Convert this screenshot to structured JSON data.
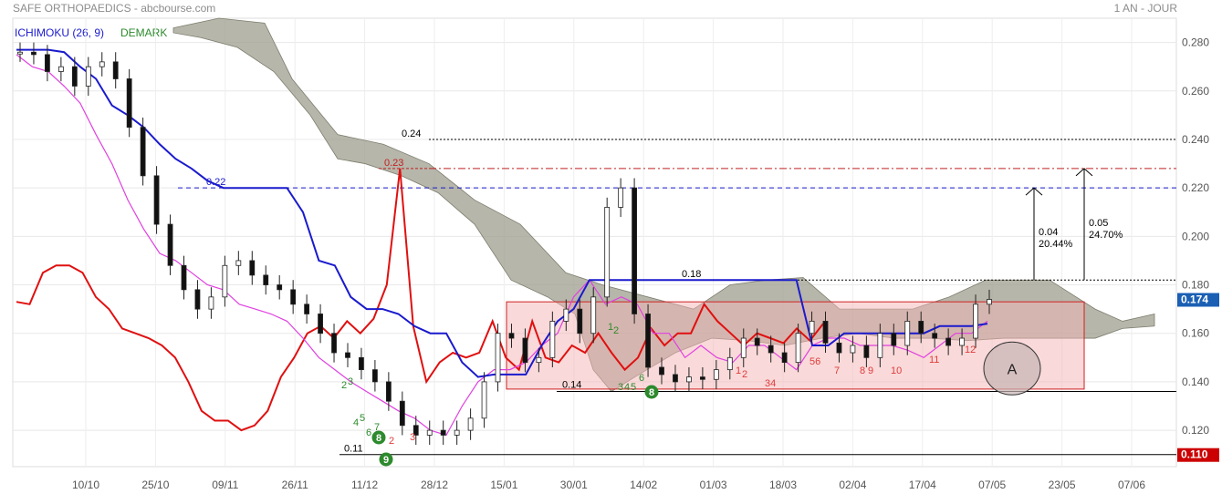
{
  "header": {
    "title": "SAFE ORTHOPAEDICS - abcbourse.com",
    "period": "1 AN - JOUR"
  },
  "legend": {
    "ichimoku": "ICHIMOKU (26, 9)",
    "demark": "DEMARK"
  },
  "colors": {
    "kijun": "#1a1acd",
    "tenkan": "#e040e0",
    "chikou": "#e01010",
    "cloud": "#9e9e8e",
    "zone": "#f4b4b4",
    "demark_green": "#2d8a2d",
    "demark_red": "#e03c3c",
    "price_badge": "#cc0000"
  },
  "chart_data": {
    "type": "candlestick",
    "ylim": [
      0.105,
      0.29
    ],
    "y_ticks": [
      "0.280",
      "0.260",
      "0.240",
      "0.220",
      "0.200",
      "0.180",
      "0.160",
      "0.140",
      "0.120"
    ],
    "x_ticks": [
      "10/10",
      "25/10",
      "09/11",
      "26/11",
      "11/12",
      "28/12",
      "15/01",
      "30/01",
      "14/02",
      "01/03",
      "18/03",
      "02/04",
      "17/04",
      "07/05",
      "23/05",
      "07/06"
    ],
    "last_price": "0.174",
    "low_price": "0.110",
    "levels": [
      {
        "label": "0.24",
        "value": 0.24
      },
      {
        "label": "0.23",
        "value": 0.228
      },
      {
        "label": "0.22",
        "value": 0.22
      },
      {
        "label": "0.18",
        "value": 0.182
      },
      {
        "label": "0.14",
        "value": 0.136
      },
      {
        "label": "0.11",
        "value": 0.11
      }
    ],
    "targets": [
      {
        "change": "0.04",
        "pct": "20.44%"
      },
      {
        "change": "0.05",
        "pct": "24.70%"
      }
    ],
    "zone_label": "A",
    "demark_badges": [
      "8",
      "9",
      "8"
    ],
    "demark_counts": [
      {
        "text": "2",
        "color": "green"
      },
      {
        "text": "3",
        "color": "green"
      },
      {
        "text": "4",
        "color": "green"
      },
      {
        "text": "5",
        "color": "green"
      },
      {
        "text": "6",
        "color": "green"
      },
      {
        "text": "7",
        "color": "green"
      },
      {
        "text": "2",
        "color": "red"
      },
      {
        "text": "3",
        "color": "red"
      },
      {
        "text": "1",
        "color": "green"
      },
      {
        "text": "2",
        "color": "green"
      },
      {
        "text": "3",
        "color": "green"
      },
      {
        "text": "4",
        "color": "green"
      },
      {
        "text": "5",
        "color": "green"
      },
      {
        "text": "6",
        "color": "green"
      },
      {
        "text": "7",
        "color": "green"
      },
      {
        "text": "1",
        "color": "red"
      },
      {
        "text": "2",
        "color": "red"
      },
      {
        "text": "34",
        "color": "red"
      },
      {
        "text": "56",
        "color": "red"
      },
      {
        "text": "7",
        "color": "red"
      },
      {
        "text": "8",
        "color": "red"
      },
      {
        "text": "9",
        "color": "red"
      },
      {
        "text": "10",
        "color": "red"
      },
      {
        "text": "11",
        "color": "red"
      },
      {
        "text": "12",
        "color": "red"
      }
    ],
    "kijun": [
      0.277,
      0.277,
      0.277,
      0.276,
      0.27,
      0.265,
      0.254,
      0.25,
      0.245,
      0.238,
      0.232,
      0.228,
      0.223,
      0.22,
      0.22,
      0.22,
      0.22,
      0.22,
      0.21,
      0.19,
      0.188,
      0.175,
      0.17,
      0.17,
      0.168,
      0.163,
      0.16,
      0.16,
      0.148,
      0.142,
      0.143,
      0.143,
      0.143,
      0.155,
      0.165,
      0.17,
      0.182,
      0.182,
      0.182,
      0.182,
      0.182,
      0.182,
      0.182,
      0.182,
      0.182,
      0.182,
      0.182,
      0.182,
      0.182,
      0.182,
      0.155,
      0.155,
      0.16,
      0.16,
      0.16,
      0.16,
      0.16,
      0.16,
      0.163,
      0.163,
      0.163,
      0.164
    ],
    "tenkan": [
      0.275,
      0.27,
      0.268,
      0.262,
      0.255,
      0.242,
      0.23,
      0.215,
      0.203,
      0.193,
      0.19,
      0.185,
      0.18,
      0.178,
      0.172,
      0.17,
      0.168,
      0.165,
      0.158,
      0.15,
      0.145,
      0.14,
      0.136,
      0.132,
      0.128,
      0.125,
      0.12,
      0.118,
      0.13,
      0.14,
      0.145,
      0.145,
      0.148,
      0.155,
      0.16,
      0.175,
      0.182,
      0.172,
      0.175,
      0.172,
      0.16,
      0.16,
      0.15,
      0.155,
      0.15,
      0.148,
      0.155,
      0.155,
      0.15,
      0.145,
      0.155,
      0.158,
      0.158,
      0.155,
      0.155,
      0.155,
      0.153,
      0.15,
      0.155,
      0.16,
      0.16,
      0.165
    ],
    "chikou": [
      0.173,
      0.172,
      0.185,
      0.188,
      0.188,
      0.185,
      0.175,
      0.17,
      0.162,
      0.16,
      0.158,
      0.155,
      0.15,
      0.14,
      0.128,
      0.124,
      0.124,
      0.12,
      0.122,
      0.128,
      0.142,
      0.15,
      0.16,
      0.163,
      0.158,
      0.165,
      0.16,
      0.166,
      0.18,
      0.228,
      0.163,
      0.14,
      0.148,
      0.152,
      0.15,
      0.152,
      0.165,
      0.15,
      0.145,
      0.165,
      0.15,
      0.148,
      0.155,
      0.152,
      0.16,
      0.152,
      0.145,
      0.15,
      0.162,
      0.155,
      0.16,
      0.16,
      0.172,
      0.165,
      0.16,
      0.155,
      0.16,
      0.158,
      0.156,
      0.162,
      0.157,
      0.164
    ],
    "candles": [
      0.276,
      0.275,
      0.268,
      0.27,
      0.262,
      0.27,
      0.272,
      0.265,
      0.245,
      0.225,
      0.205,
      0.188,
      0.178,
      0.17,
      0.175,
      0.188,
      0.19,
      0.184,
      0.18,
      0.178,
      0.172,
      0.168,
      0.16,
      0.152,
      0.15,
      0.145,
      0.14,
      0.132,
      0.122,
      0.118,
      0.12,
      0.118,
      0.12,
      0.125,
      0.14,
      0.16,
      0.158,
      0.148,
      0.15,
      0.165,
      0.17,
      0.16,
      0.175,
      0.212,
      0.22,
      0.168,
      0.146,
      0.143,
      0.14,
      0.142,
      0.141,
      0.145,
      0.15,
      0.158,
      0.155,
      0.152,
      0.148,
      0.16,
      0.165,
      0.156,
      0.152,
      0.155,
      0.15,
      0.16,
      0.155,
      0.165,
      0.16,
      0.158,
      0.155,
      0.158,
      0.172,
      0.174
    ]
  }
}
